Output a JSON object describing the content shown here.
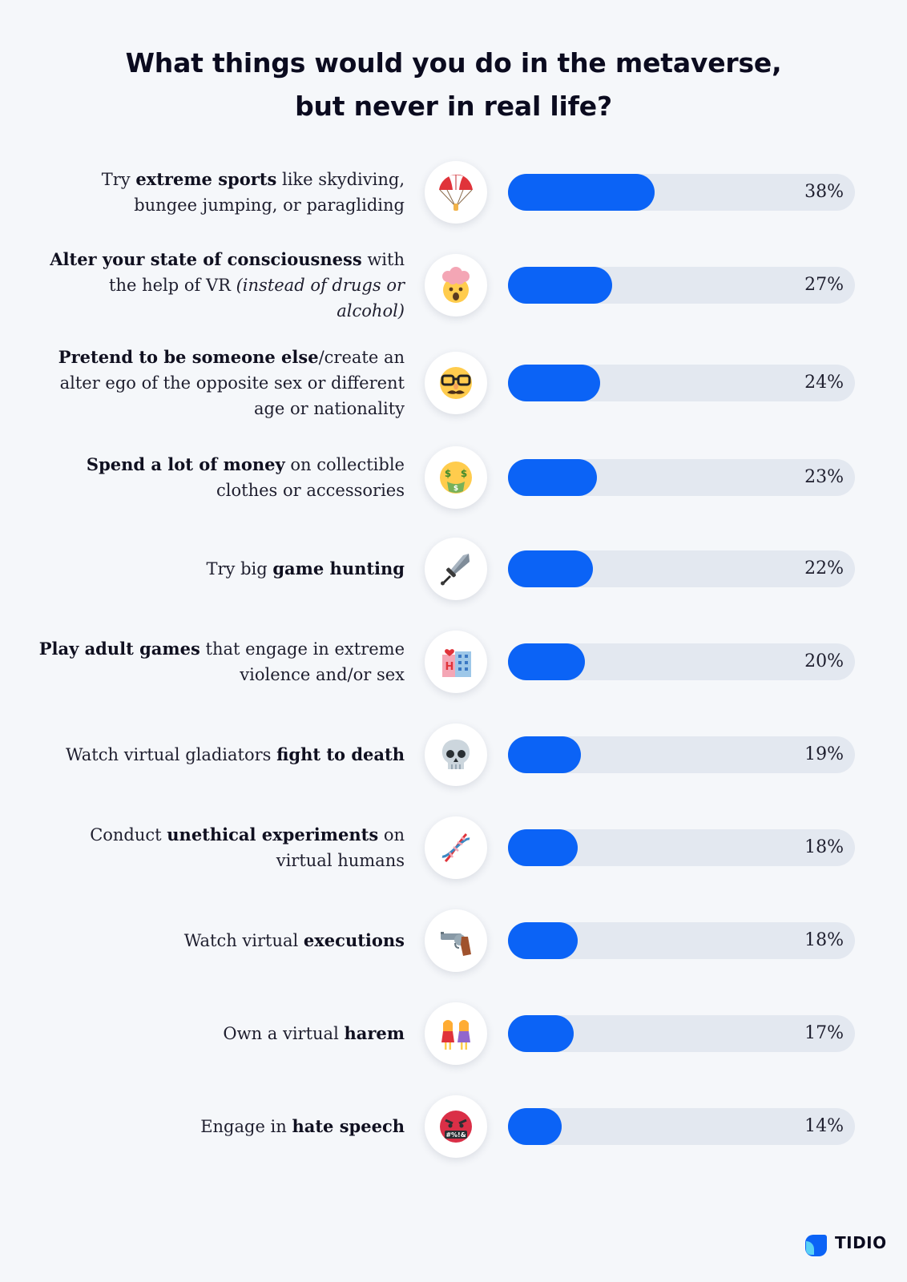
{
  "chart_data": {
    "type": "bar",
    "orientation": "horizontal",
    "title": "What things would you do in the metaverse, but never in real life?",
    "title_lines": [
      "What things would you do in the metaverse,",
      "but never in real life?"
    ],
    "xlim": [
      0,
      100
    ],
    "grid": false,
    "legend": "none",
    "unit": "%",
    "categories": [
      "Try extreme sports like skydiving, bungee jumping, or paragliding",
      "Alter your state of consciousness with the help of VR (instead of drugs or alcohol)",
      "Pretend to be someone else/create an alter ego of the opposite sex or different age or nationality",
      "Spend a lot of money on collectible clothes or accessories",
      "Try big game hunting",
      "Play adult games that engage in extreme violence and/or sex",
      "Watch virtual gladiators fight to death",
      "Conduct unethical experiments on virtual humans",
      "Watch virtual executions",
      "Own a virtual harem",
      "Engage in hate speech"
    ],
    "values": [
      38,
      27,
      24,
      23,
      22,
      20,
      19,
      18,
      18,
      17,
      14
    ],
    "value_labels": [
      "38%",
      "27%",
      "24%",
      "23%",
      "22%",
      "20%",
      "19%",
      "18%",
      "18%",
      "17%",
      "14%"
    ],
    "colors": {
      "bar": "#0b63f6",
      "track": "#e3e8f0"
    }
  },
  "rows": [
    {
      "segments": [
        [
          {
            "t": "Try ",
            "b": false
          },
          {
            "t": "extreme sports",
            "b": true
          },
          {
            "t": " like skydiving,",
            "b": false
          }
        ],
        [
          {
            "t": "bungee jumping, or paragliding",
            "b": false
          }
        ]
      ],
      "icon": "parachute-icon",
      "value_label": "38%"
    },
    {
      "segments": [
        [
          {
            "t": "Alter your state of consciousness",
            "b": true
          },
          {
            "t": " with",
            "b": false
          }
        ],
        [
          {
            "t": "the help of VR ",
            "b": false
          },
          {
            "t": "(instead of drugs or alcohol)",
            "i": true
          }
        ]
      ],
      "icon": "exploding-head-icon",
      "value_label": "27%"
    },
    {
      "segments": [
        [
          {
            "t": "Pretend to be someone else",
            "b": true
          },
          {
            "t": "/create an",
            "b": false
          }
        ],
        [
          {
            "t": "alter ego of the opposite sex or different",
            "b": false
          }
        ],
        [
          {
            "t": "age or nationality",
            "b": false
          }
        ]
      ],
      "icon": "disguised-face-icon",
      "value_label": "24%"
    },
    {
      "segments": [
        [
          {
            "t": "Spend a lot of money",
            "b": true
          },
          {
            "t": " on collectible",
            "b": false
          }
        ],
        [
          {
            "t": "clothes or accessories",
            "b": false
          }
        ]
      ],
      "icon": "money-mouth-face-icon",
      "value_label": "23%"
    },
    {
      "segments": [
        [
          {
            "t": "Try big ",
            "b": false
          },
          {
            "t": "game hunting",
            "b": true
          }
        ]
      ],
      "icon": "dagger-icon",
      "value_label": "22%"
    },
    {
      "segments": [
        [
          {
            "t": "Play adult games",
            "b": true
          },
          {
            "t": " that engage in extreme",
            "b": false
          }
        ],
        [
          {
            "t": "violence and/or sex",
            "b": false
          }
        ]
      ],
      "icon": "love-hotel-icon",
      "value_label": "20%"
    },
    {
      "segments": [
        [
          {
            "t": "Watch virtual gladiators ",
            "b": false
          },
          {
            "t": "fight to death",
            "b": true
          }
        ]
      ],
      "icon": "skull-icon",
      "value_label": "19%"
    },
    {
      "segments": [
        [
          {
            "t": "Conduct ",
            "b": false
          },
          {
            "t": "unethical experiments",
            "b": true
          },
          {
            "t": " on",
            "b": false
          }
        ],
        [
          {
            "t": "virtual humans",
            "b": false
          }
        ]
      ],
      "icon": "dna-icon",
      "value_label": "18%"
    },
    {
      "segments": [
        [
          {
            "t": "Watch virtual ",
            "b": false
          },
          {
            "t": "executions",
            "b": true
          }
        ]
      ],
      "icon": "pistol-icon",
      "value_label": "18%"
    },
    {
      "segments": [
        [
          {
            "t": "Own a virtual ",
            "b": false
          },
          {
            "t": "harem",
            "b": true
          }
        ]
      ],
      "icon": "two-women-icon",
      "value_label": "17%"
    },
    {
      "segments": [
        [
          {
            "t": "Engage in ",
            "b": false
          },
          {
            "t": "hate speech",
            "b": true
          }
        ]
      ],
      "icon": "face-with-symbols-icon",
      "value_label": "14%"
    }
  ],
  "logo": {
    "text": "TIDIO",
    "icon": "tidio-logo-icon",
    "color": "#0b63f6"
  }
}
